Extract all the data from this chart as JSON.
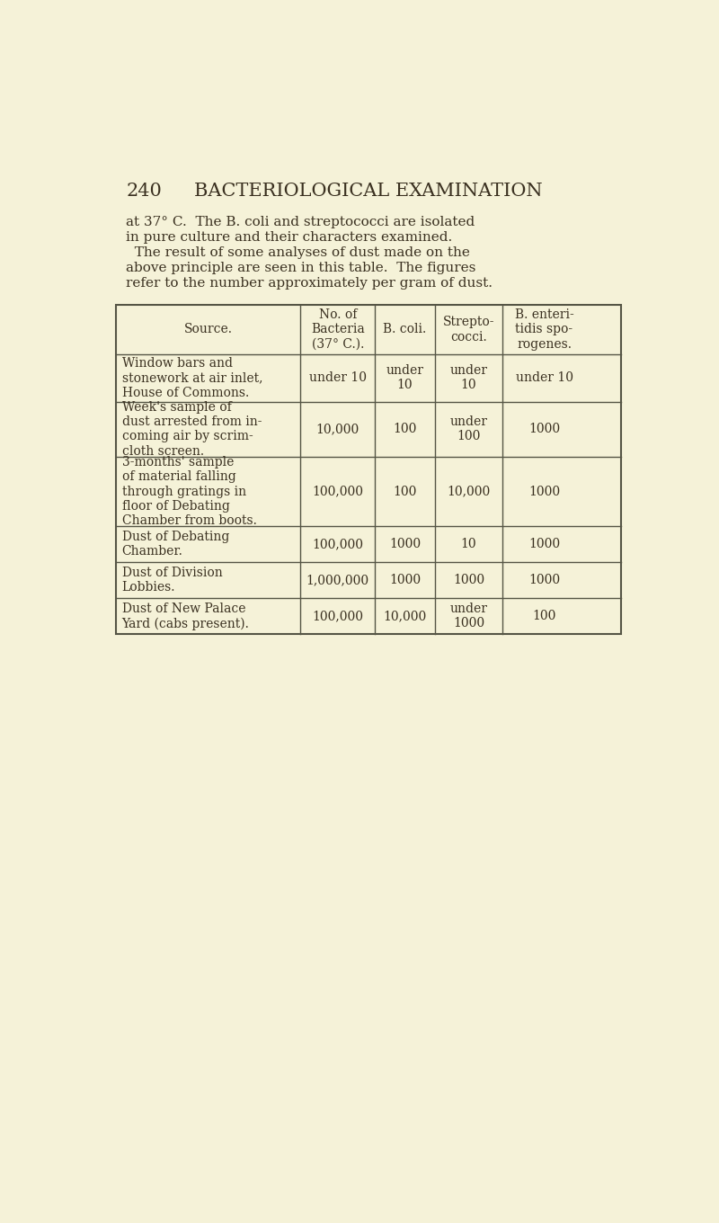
{
  "page_number": "240",
  "heading": "BACTERIOLOGICAL EXAMINATION",
  "intro_text": [
    "at 37° C.  The B. coli and streptococci are isolated",
    "in pure culture and their characters examined.",
    "  The result of some analyses of dust made on the",
    "above principle are seen in this table.  The figures",
    "refer to the number approximately per gram of dust."
  ],
  "bg_color": "#f5f2d8",
  "col_headers": [
    "Source.",
    "No. of\nBacteria\n(37° C.).",
    "B. coli.",
    "Strepto-\ncocci.",
    "B. enteri-\ntidis spo-\nrogenes."
  ],
  "rows": [
    {
      "source": "Window bars and\nstonework at air inlet,\nHouse of Commons.",
      "bacteria": "under 10",
      "bcoli": "under\n10",
      "strepto": "under\n10",
      "enteridis": "under 10"
    },
    {
      "source": "Week's sample of\ndust arrested from in-\ncoming air by scrim-\ncloth screen.",
      "bacteria": "10,000",
      "bcoli": "100",
      "strepto": "under\n100",
      "enteridis": "1000"
    },
    {
      "source": "3-months' sample\nof material falling\nthrough gratings in\nfloor of Debating\nChamber from boots.",
      "bacteria": "100,000",
      "bcoli": "100",
      "strepto": "10,000",
      "enteridis": "1000"
    },
    {
      "source": "Dust of Debating\nChamber.",
      "bacteria": "100,000",
      "bcoli": "1000",
      "strepto": "10",
      "enteridis": "1000"
    },
    {
      "source": "Dust of Division\nLobbies.",
      "bacteria": "1,000,000",
      "bcoli": "1000",
      "strepto": "1000",
      "enteridis": "1000"
    },
    {
      "source": "Dust of New Palace\nYard (cabs present).",
      "bacteria": "100,000",
      "bcoli": "10,000",
      "strepto": "under\n1000",
      "enteridis": "100"
    }
  ],
  "text_color": "#3a3020",
  "line_color": "#555545",
  "font_size_heading": 15,
  "font_size_body": 11,
  "font_size_table": 10.0
}
